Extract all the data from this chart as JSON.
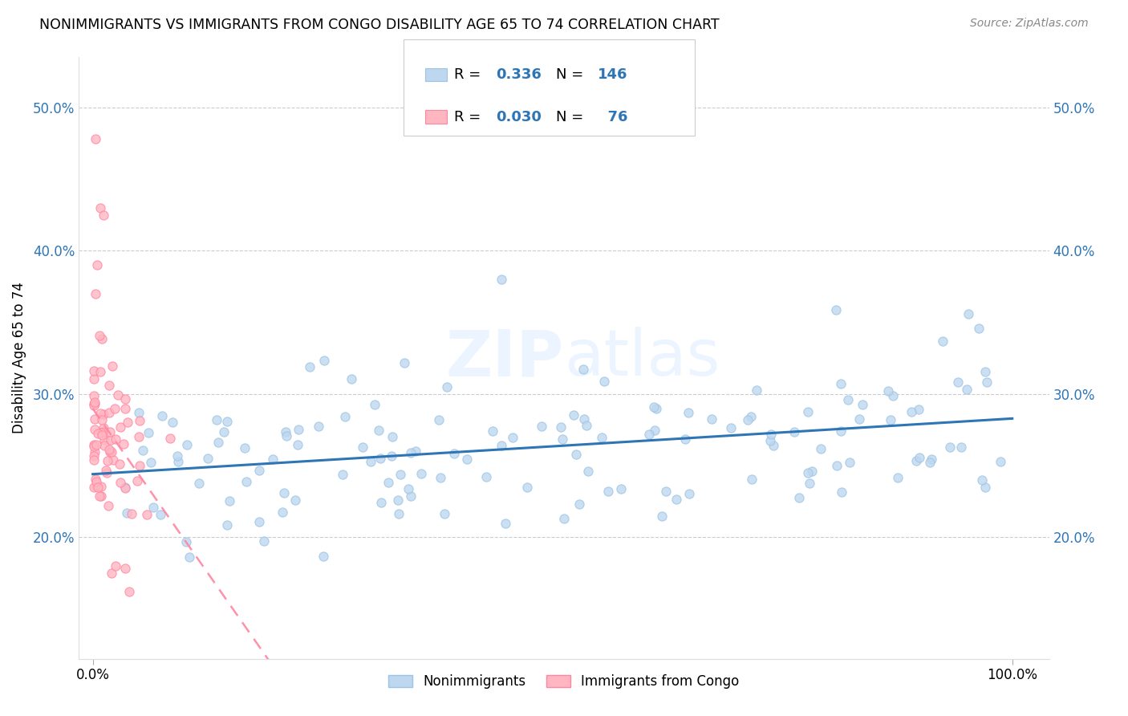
{
  "title": "NONIMMIGRANTS VS IMMIGRANTS FROM CONGO DISABILITY AGE 65 TO 74 CORRELATION CHART",
  "source": "Source: ZipAtlas.com",
  "ylabel": "Disability Age 65 to 74",
  "ytick_labels": [
    "20.0%",
    "30.0%",
    "40.0%",
    "50.0%"
  ],
  "ytick_values": [
    0.2,
    0.3,
    0.4,
    0.5
  ],
  "xlim": [
    -0.015,
    1.04
  ],
  "ylim": [
    0.115,
    0.535
  ],
  "nonimmigrant_color": "#BDD7EE",
  "nonimmigrant_edge": "#9DC3E6",
  "immigrant_color": "#FFB6C1",
  "immigrant_edge": "#FF85A1",
  "trend_nonimmigrant_color": "#2E75B6",
  "trend_immigrant_color": "#FF85A1",
  "R_nonimmigrant": 0.336,
  "N_nonimmigrant": 146,
  "R_immigrant": 0.03,
  "N_immigrant": 76,
  "legend_label_1": "Nonimmigrants",
  "legend_label_2": "Immigrants from Congo",
  "watermark": "ZIPatlas",
  "seed": 42
}
